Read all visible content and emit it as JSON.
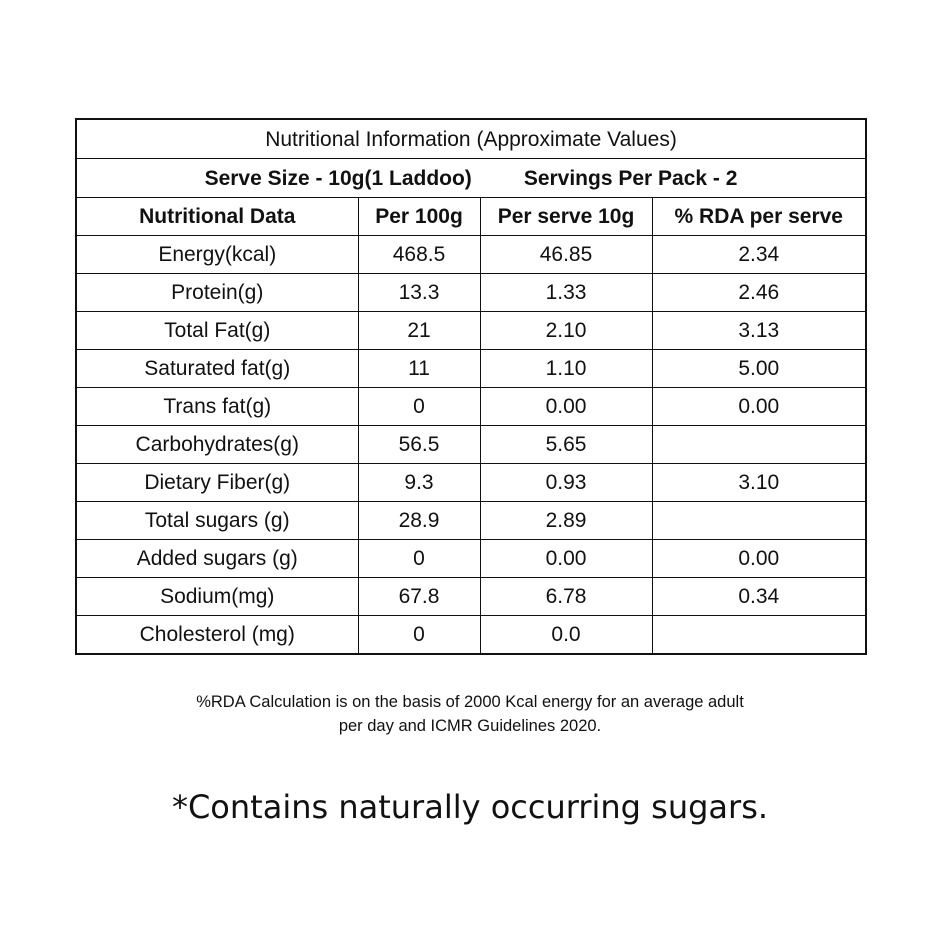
{
  "title": "Nutritional Information (Approximate Values)",
  "serve_size": "Serve Size - 10g(1 Laddoo)",
  "servings_per_pack": "Servings Per Pack - 2",
  "columns": [
    "Nutritional Data",
    "Per 100g",
    "Per serve 10g",
    "% RDA per serve"
  ],
  "rows": [
    [
      "Energy(kcal)",
      "468.5",
      "46.85",
      "2.34"
    ],
    [
      "Protein(g)",
      "13.3",
      "1.33",
      "2.46"
    ],
    [
      "Total Fat(g)",
      "21",
      "2.10",
      "3.13"
    ],
    [
      "Saturated fat(g)",
      "11",
      "1.10",
      "5.00"
    ],
    [
      "Trans fat(g)",
      "0",
      "0.00",
      "0.00"
    ],
    [
      "Carbohydrates(g)",
      "56.5",
      "5.65",
      ""
    ],
    [
      "Dietary Fiber(g)",
      "9.3",
      "0.93",
      "3.10"
    ],
    [
      "Total sugars (g)",
      "28.9",
      "2.89",
      ""
    ],
    [
      "Added sugars (g)",
      "0",
      "0.00",
      "0.00"
    ],
    [
      "Sodium(mg)",
      "67.8",
      "6.78",
      "0.34"
    ],
    [
      "Cholesterol (mg)",
      "0",
      "0.0",
      ""
    ]
  ],
  "note_line1": "%RDA Calculation is on the basis of 2000 Kcal energy for an average adult",
  "note_line2": "per day and ICMR Guidelines 2020.",
  "footnote": "*Contains naturally occurring sugars."
}
